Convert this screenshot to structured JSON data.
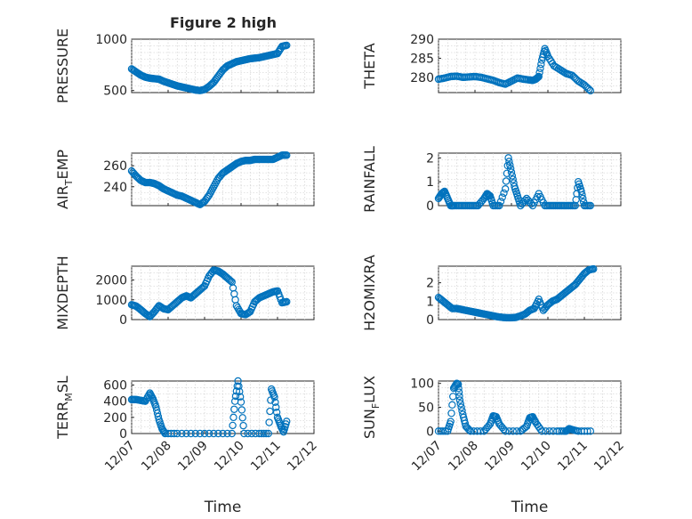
{
  "title": "Figure 2 high",
  "chart_data": [
    {
      "type": "scatter",
      "ylabel": "PRESSURE",
      "ylim": [
        480,
        1000
      ],
      "yticks": [
        500,
        1000
      ],
      "grid": true,
      "x": [
        "12/07 00:00",
        "12/07 03:00",
        "12/07 06:00",
        "12/07 09:00",
        "12/07 12:00",
        "12/07 15:00",
        "12/07 18:00",
        "12/07 21:00",
        "12/08 00:00",
        "12/08 03:00",
        "12/08 06:00",
        "12/08 09:00",
        "12/08 12:00",
        "12/08 15:00",
        "12/08 18:00",
        "12/08 21:00",
        "12/09 00:00",
        "12/09 03:00",
        "12/09 06:00",
        "12/09 09:00",
        "12/09 12:00",
        "12/09 15:00",
        "12/09 18:00",
        "12/09 21:00",
        "12/10 00:00",
        "12/10 03:00",
        "12/10 06:00",
        "12/10 09:00",
        "12/10 12:00",
        "12/10 15:00",
        "12/10 18:00",
        "12/10 21:00",
        "12/11 00:00",
        "12/11 03:00",
        "12/11 06:00"
      ],
      "y": [
        710,
        680,
        650,
        630,
        620,
        615,
        610,
        590,
        575,
        560,
        545,
        535,
        525,
        515,
        505,
        500,
        510,
        540,
        580,
        640,
        700,
        740,
        760,
        780,
        790,
        800,
        810,
        815,
        820,
        830,
        840,
        850,
        860,
        930,
        940
      ]
    },
    {
      "type": "scatter",
      "ylabel": "THETA",
      "ylim": [
        276,
        290
      ],
      "yticks": [
        280,
        285,
        290
      ],
      "grid": true,
      "x": [
        "12/07 00:00",
        "12/07 04:00",
        "12/07 08:00",
        "12/07 12:00",
        "12/07 16:00",
        "12/07 20:00",
        "12/08 00:00",
        "12/08 04:00",
        "12/08 08:00",
        "12/08 12:00",
        "12/08 16:00",
        "12/08 20:00",
        "12/09 00:00",
        "12/09 04:00",
        "12/09 08:00",
        "12/09 12:00",
        "12/09 14:00",
        "12/09 16:00",
        "12/09 18:00",
        "12/09 20:00",
        "12/09 22:00",
        "12/10 00:00",
        "12/10 04:00",
        "12/10 08:00",
        "12/10 12:00",
        "12/10 16:00",
        "12/10 20:00",
        "12/11 00:00",
        "12/11 04:00"
      ],
      "y": [
        279.5,
        279.8,
        280.2,
        280.3,
        280,
        280.1,
        280.2,
        280,
        279.6,
        279.2,
        278.6,
        278.2,
        279,
        279.8,
        279.5,
        279.3,
        279.2,
        279.5,
        280.2,
        284.5,
        287.5,
        285.5,
        283,
        282,
        281,
        280.5,
        279,
        278,
        276.5
      ]
    },
    {
      "type": "scatter",
      "ylabel": "AIR_TEMP",
      "ylim": [
        222,
        272
      ],
      "yticks": [
        240,
        260
      ],
      "grid": true,
      "x": [
        "12/07 00:00",
        "12/07 03:00",
        "12/07 06:00",
        "12/07 09:00",
        "12/07 12:00",
        "12/07 15:00",
        "12/07 18:00",
        "12/07 21:00",
        "12/08 00:00",
        "12/08 03:00",
        "12/08 06:00",
        "12/08 09:00",
        "12/08 12:00",
        "12/08 15:00",
        "12/08 18:00",
        "12/08 21:00",
        "12/09 00:00",
        "12/09 03:00",
        "12/09 06:00",
        "12/09 09:00",
        "12/09 12:00",
        "12/09 15:00",
        "12/09 18:00",
        "12/09 21:00",
        "12/10 00:00",
        "12/10 03:00",
        "12/10 06:00",
        "12/10 09:00",
        "12/10 12:00",
        "12/10 15:00",
        "12/10 18:00",
        "12/10 21:00",
        "12/11 00:00",
        "12/11 03:00",
        "12/11 06:00"
      ],
      "y": [
        255,
        250,
        246,
        244,
        244,
        243,
        241,
        238,
        236,
        234,
        232,
        231,
        229,
        227,
        225,
        223,
        226,
        232,
        240,
        248,
        253,
        256,
        259,
        262,
        264,
        265,
        265,
        266,
        266,
        266,
        266,
        266,
        268,
        270,
        270
      ]
    },
    {
      "type": "scatter",
      "ylabel": "RAINFALL",
      "ylim": [
        0,
        2.2
      ],
      "yticks": [
        0,
        1,
        2
      ],
      "grid": true,
      "x": [
        "12/07 00:00",
        "12/07 02:00",
        "12/07 04:00",
        "12/07 06:00",
        "12/07 08:00",
        "12/07 10:00",
        "12/07 14:00",
        "12/07 18:00",
        "12/07 22:00",
        "12/08 02:00",
        "12/08 06:00",
        "12/08 08:00",
        "12/08 10:00",
        "12/08 12:00",
        "12/08 16:00",
        "12/08 20:00",
        "12/08 22:00",
        "12/09 00:00",
        "12/09 02:00",
        "12/09 04:00",
        "12/09 06:00",
        "12/09 10:00",
        "12/09 14:00",
        "12/09 18:00",
        "12/09 22:00",
        "12/10 02:00",
        "12/10 06:00",
        "12/10 10:00",
        "12/10 14:00",
        "12/10 18:00",
        "12/10 20:00",
        "12/10 22:00",
        "12/11 00:00",
        "12/11 04:00"
      ],
      "y": [
        0.3,
        0.5,
        0.6,
        0.3,
        0,
        0,
        0,
        0,
        0,
        0,
        0.3,
        0.5,
        0.4,
        0,
        0,
        0.7,
        2.0,
        1.4,
        0.8,
        0.4,
        0,
        0.3,
        0,
        0.5,
        0,
        0,
        0,
        0,
        0,
        0,
        1.0,
        0.6,
        0,
        0
      ]
    },
    {
      "type": "scatter",
      "ylabel": "MIXDEPTH",
      "ylim": [
        0,
        2700
      ],
      "yticks": [
        0,
        1000,
        2000
      ],
      "grid": true,
      "x": [
        "12/07 00:00",
        "12/07 03:00",
        "12/07 06:00",
        "12/07 09:00",
        "12/07 12:00",
        "12/07 15:00",
        "12/07 18:00",
        "12/07 21:00",
        "12/08 00:00",
        "12/08 03:00",
        "12/08 06:00",
        "12/08 09:00",
        "12/08 12:00",
        "12/08 15:00",
        "12/08 18:00",
        "12/08 21:00",
        "12/09 00:00",
        "12/09 03:00",
        "12/09 06:00",
        "12/09 09:00",
        "12/09 12:00",
        "12/09 15:00",
        "12/09 18:00",
        "12/09 21:00",
        "12/10 00:00",
        "12/10 03:00",
        "12/10 06:00",
        "12/10 09:00",
        "12/10 12:00",
        "12/10 15:00",
        "12/10 18:00",
        "12/10 21:00",
        "12/11 00:00",
        "12/11 03:00",
        "12/11 06:00"
      ],
      "y": [
        750,
        680,
        500,
        300,
        150,
        400,
        700,
        550,
        500,
        700,
        900,
        1100,
        1200,
        1100,
        1300,
        1500,
        1700,
        2200,
        2500,
        2450,
        2300,
        2100,
        1900,
        700,
        300,
        250,
        400,
        900,
        1100,
        1200,
        1300,
        1400,
        1450,
        850,
        900
      ]
    },
    {
      "type": "scatter",
      "ylabel": "H2OMIXRA",
      "ylim": [
        0,
        2.9
      ],
      "yticks": [
        0,
        1,
        2
      ],
      "grid": true,
      "x": [
        "12/07 00:00",
        "12/07 03:00",
        "12/07 06:00",
        "12/07 09:00",
        "12/07 12:00",
        "12/07 15:00",
        "12/07 18:00",
        "12/07 21:00",
        "12/08 00:00",
        "12/08 03:00",
        "12/08 06:00",
        "12/08 09:00",
        "12/08 12:00",
        "12/08 15:00",
        "12/08 18:00",
        "12/08 21:00",
        "12/09 00:00",
        "12/09 03:00",
        "12/09 06:00",
        "12/09 09:00",
        "12/09 12:00",
        "12/09 15:00",
        "12/09 18:00",
        "12/09 21:00",
        "12/10 00:00",
        "12/10 03:00",
        "12/10 06:00",
        "12/10 09:00",
        "12/10 12:00",
        "12/10 15:00",
        "12/10 18:00",
        "12/10 21:00",
        "12/11 00:00",
        "12/11 03:00",
        "12/11 06:00"
      ],
      "y": [
        1.2,
        1.0,
        0.8,
        0.6,
        0.6,
        0.55,
        0.5,
        0.45,
        0.4,
        0.35,
        0.3,
        0.25,
        0.2,
        0.15,
        0.12,
        0.1,
        0.1,
        0.12,
        0.2,
        0.3,
        0.5,
        0.6,
        1.1,
        0.5,
        0.8,
        1.0,
        1.1,
        1.3,
        1.5,
        1.7,
        1.9,
        2.2,
        2.5,
        2.7,
        2.75
      ]
    },
    {
      "type": "scatter",
      "ylabel": "TERR_MSL",
      "ylim": [
        0,
        650
      ],
      "yticks": [
        0,
        200,
        400,
        600
      ],
      "grid": true,
      "x": [
        "12/07 00:00",
        "12/07 03:00",
        "12/07 06:00",
        "12/07 09:00",
        "12/07 12:00",
        "12/07 14:00",
        "12/07 16:00",
        "12/07 18:00",
        "12/07 20:00",
        "12/07 22:00",
        "12/08 06:00",
        "12/08 18:00",
        "12/09 06:00",
        "12/09 18:00",
        "12/09 20:00",
        "12/09 22:00",
        "12/10 00:00",
        "12/10 02:00",
        "12/10 12:00",
        "12/10 18:00",
        "12/10 20:00",
        "12/10 22:00",
        "12/11 00:00",
        "12/11 02:00",
        "12/11 04:00",
        "12/11 06:00"
      ],
      "y": [
        420,
        420,
        410,
        400,
        500,
        430,
        330,
        170,
        60,
        0,
        0,
        0,
        0,
        0,
        400,
        650,
        390,
        0,
        0,
        0,
        550,
        450,
        200,
        100,
        20,
        150
      ]
    },
    {
      "type": "scatter",
      "ylabel": "SUN_FLUX",
      "ylim": [
        -5,
        105
      ],
      "yticks": [
        0,
        50,
        100
      ],
      "grid": true,
      "x": [
        "12/07 00:00",
        "12/07 06:00",
        "12/07 08:00",
        "12/07 10:00",
        "12/07 12:00",
        "12/07 13:00",
        "12/07 14:00",
        "12/07 16:00",
        "12/07 18:00",
        "12/07 21:00",
        "12/08 06:00",
        "12/08 10:00",
        "12/08 12:00",
        "12/08 14:00",
        "12/08 16:00",
        "12/08 20:00",
        "12/09 06:00",
        "12/09 10:00",
        "12/09 12:00",
        "12/09 14:00",
        "12/09 16:00",
        "12/09 20:00",
        "12/10 06:00",
        "12/10 12:00",
        "12/10 14:00",
        "12/10 16:00",
        "12/10 20:00",
        "12/11 04:00"
      ],
      "y": [
        0,
        0,
        20,
        90,
        100,
        98,
        65,
        35,
        10,
        0,
        0,
        15,
        32,
        30,
        15,
        0,
        0,
        10,
        28,
        30,
        18,
        0,
        0,
        0,
        5,
        3,
        0,
        0
      ]
    }
  ],
  "x_axis": {
    "label": "Time",
    "tick_labels": [
      "12/07",
      "12/08",
      "12/09",
      "12/10",
      "12/11",
      "12/12"
    ],
    "tick_dates": [
      "12/07 00:00",
      "12/08 00:00",
      "12/09 00:00",
      "12/10 00:00",
      "12/11 00:00",
      "12/12 00:00"
    ]
  },
  "colors": {
    "marker": "#0072bd",
    "axis": "#262626"
  }
}
